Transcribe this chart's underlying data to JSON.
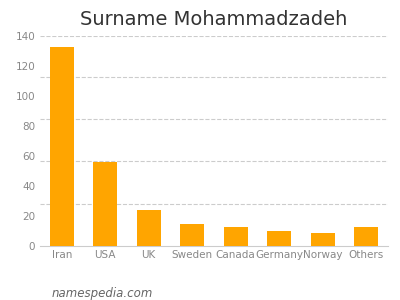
{
  "title": "Surname Mohammadzadeh",
  "categories": [
    "Iran",
    "USA",
    "UK",
    "Sweden",
    "Canada",
    "Germany",
    "Norway",
    "Others"
  ],
  "values": [
    133,
    56,
    24,
    15,
    13,
    10,
    9,
    13
  ],
  "bar_color": "#FFA500",
  "ylim": [
    0,
    140
  ],
  "yticks": [
    0,
    20,
    40,
    60,
    80,
    100,
    120,
    140
  ],
  "grid_yticks": [
    28,
    57,
    85,
    113,
    140
  ],
  "grid_color": "#cccccc",
  "background_color": "#ffffff",
  "title_fontsize": 14,
  "tick_fontsize": 7.5,
  "footer_text": "namespedia.com",
  "footer_fontsize": 8.5,
  "bar_width": 0.55
}
